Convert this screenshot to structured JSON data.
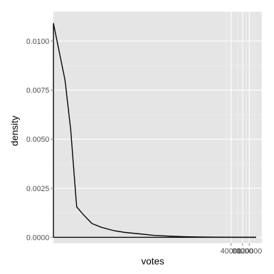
{
  "chart_data": {
    "type": "line",
    "title": "",
    "xlabel": "votes",
    "ylabel": "density",
    "x_scale": "log",
    "x_ticks": [
      40000,
      80000,
      120000
    ],
    "x_tick_labels": [
      "40000",
      "80000",
      "120000"
    ],
    "y_ticks": [
      0,
      0.0025,
      0.005,
      0.0075,
      0.01
    ],
    "y_tick_labels": [
      "0.0000",
      "0.0025",
      "0.0050",
      "0.0075",
      "0.0100"
    ],
    "ylim": [
      -0.0003,
      0.0115
    ],
    "xlim": [
      1,
      250000
    ],
    "grid": true,
    "series": [
      {
        "x": [
          1,
          1.4,
          2,
          2.8,
          4,
          6,
          10,
          18,
          35,
          70,
          160,
          400,
          1000,
          2500,
          8000,
          30000,
          180000
        ],
        "y": [
          0.0109,
          0.0095,
          0.008,
          0.0055,
          0.00155,
          0.00115,
          0.0007,
          0.0005,
          0.00035,
          0.00025,
          0.00018,
          0.0001,
          6e-05,
          3e-05,
          1e-05,
          3e-06,
          0.0
        ]
      }
    ],
    "colors": {
      "panel_background": "#e5e5e5",
      "grid_major": "#ffffff",
      "grid_minor": "#f2f2f2",
      "line": "#000000"
    }
  }
}
